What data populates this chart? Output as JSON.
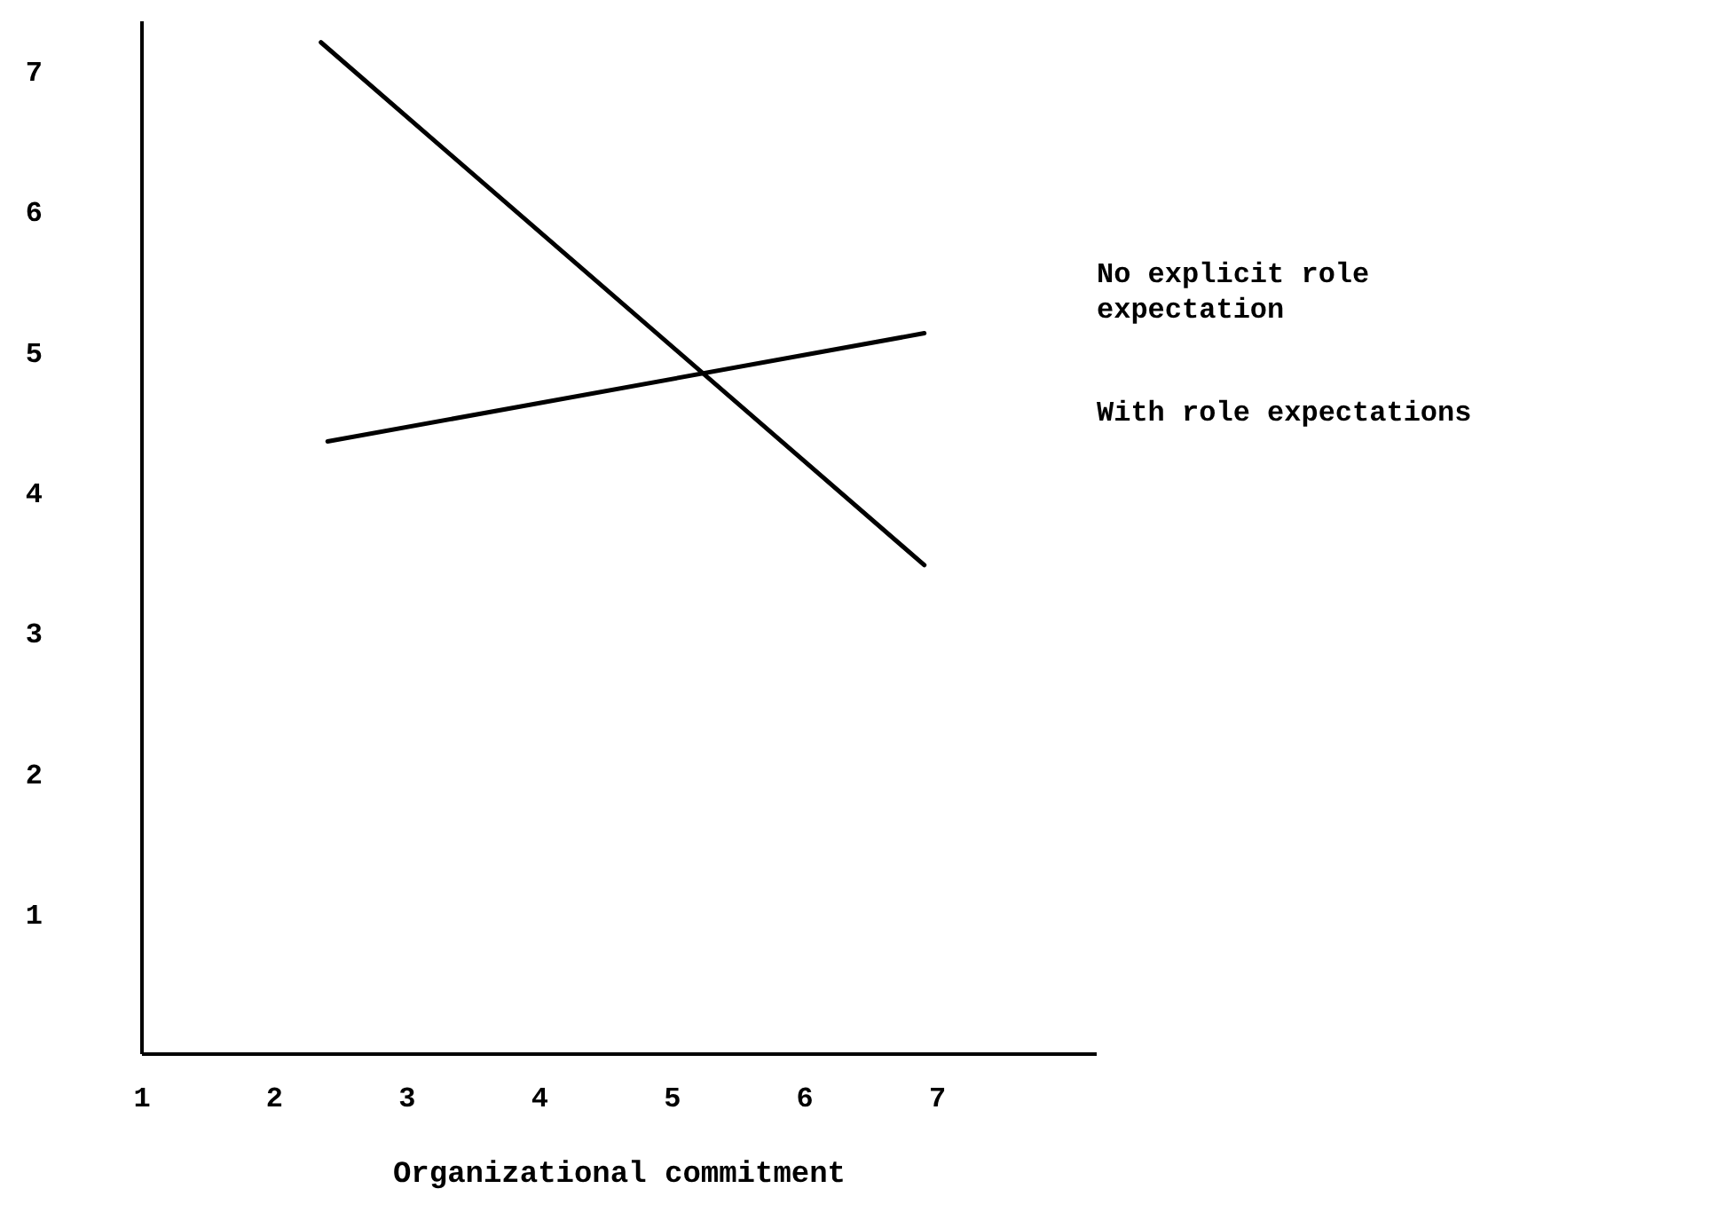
{
  "chart_data": {
    "type": "line",
    "xlabel": "Organizational commitment",
    "xlim": [
      1,
      8.2
    ],
    "xticks": [
      1,
      2,
      3,
      4,
      5,
      6,
      7
    ],
    "ylim": [
      0,
      7.35
    ],
    "yticks": [
      1,
      2,
      3,
      4,
      5,
      6,
      7
    ],
    "grid": false,
    "legend": "right",
    "marker": "none",
    "line_style": "solid",
    "series": [
      {
        "name": "No explicit role expectation",
        "color": "#000000",
        "x": [
          2.4,
          6.9
        ],
        "values": [
          4.36,
          5.13
        ]
      },
      {
        "name": "With role expectations",
        "color": "#000000",
        "x": [
          2.35,
          6.9
        ],
        "values": [
          7.2,
          3.48
        ]
      }
    ]
  }
}
